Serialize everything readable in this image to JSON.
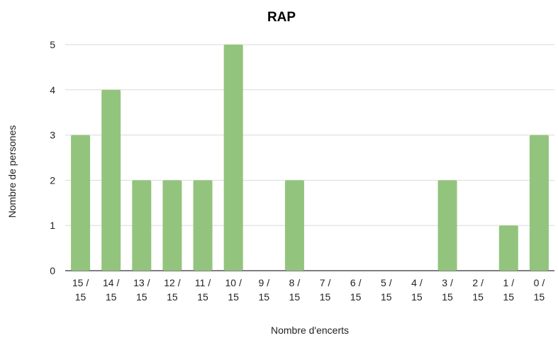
{
  "chart_data": {
    "type": "bar",
    "title": "RAP",
    "xlabel": "Nombre d'encerts",
    "ylabel": "Nombre de persones",
    "categories": [
      [
        "15 /",
        "15"
      ],
      [
        "14 /",
        "15"
      ],
      [
        "13 /",
        "15"
      ],
      [
        "12 /",
        "15"
      ],
      [
        "11 /",
        "15"
      ],
      [
        "10 /",
        "15"
      ],
      [
        "9 /",
        "15"
      ],
      [
        "8 /",
        "15"
      ],
      [
        "7 /",
        "15"
      ],
      [
        "6 /",
        "15"
      ],
      [
        "5 /",
        "15"
      ],
      [
        "4 /",
        "15"
      ],
      [
        "3 /",
        "15"
      ],
      [
        "2 /",
        "15"
      ],
      [
        "1 /",
        "15"
      ],
      [
        "0 /",
        "15"
      ]
    ],
    "values": [
      3,
      4,
      2,
      2,
      2,
      5,
      0,
      2,
      0,
      0,
      0,
      0,
      2,
      0,
      1,
      3
    ],
    "ylim": [
      0,
      5
    ],
    "yticks": [
      0,
      1,
      2,
      3,
      4,
      5
    ],
    "grid": true,
    "legend": "none",
    "bar_color": "#93c47d"
  }
}
